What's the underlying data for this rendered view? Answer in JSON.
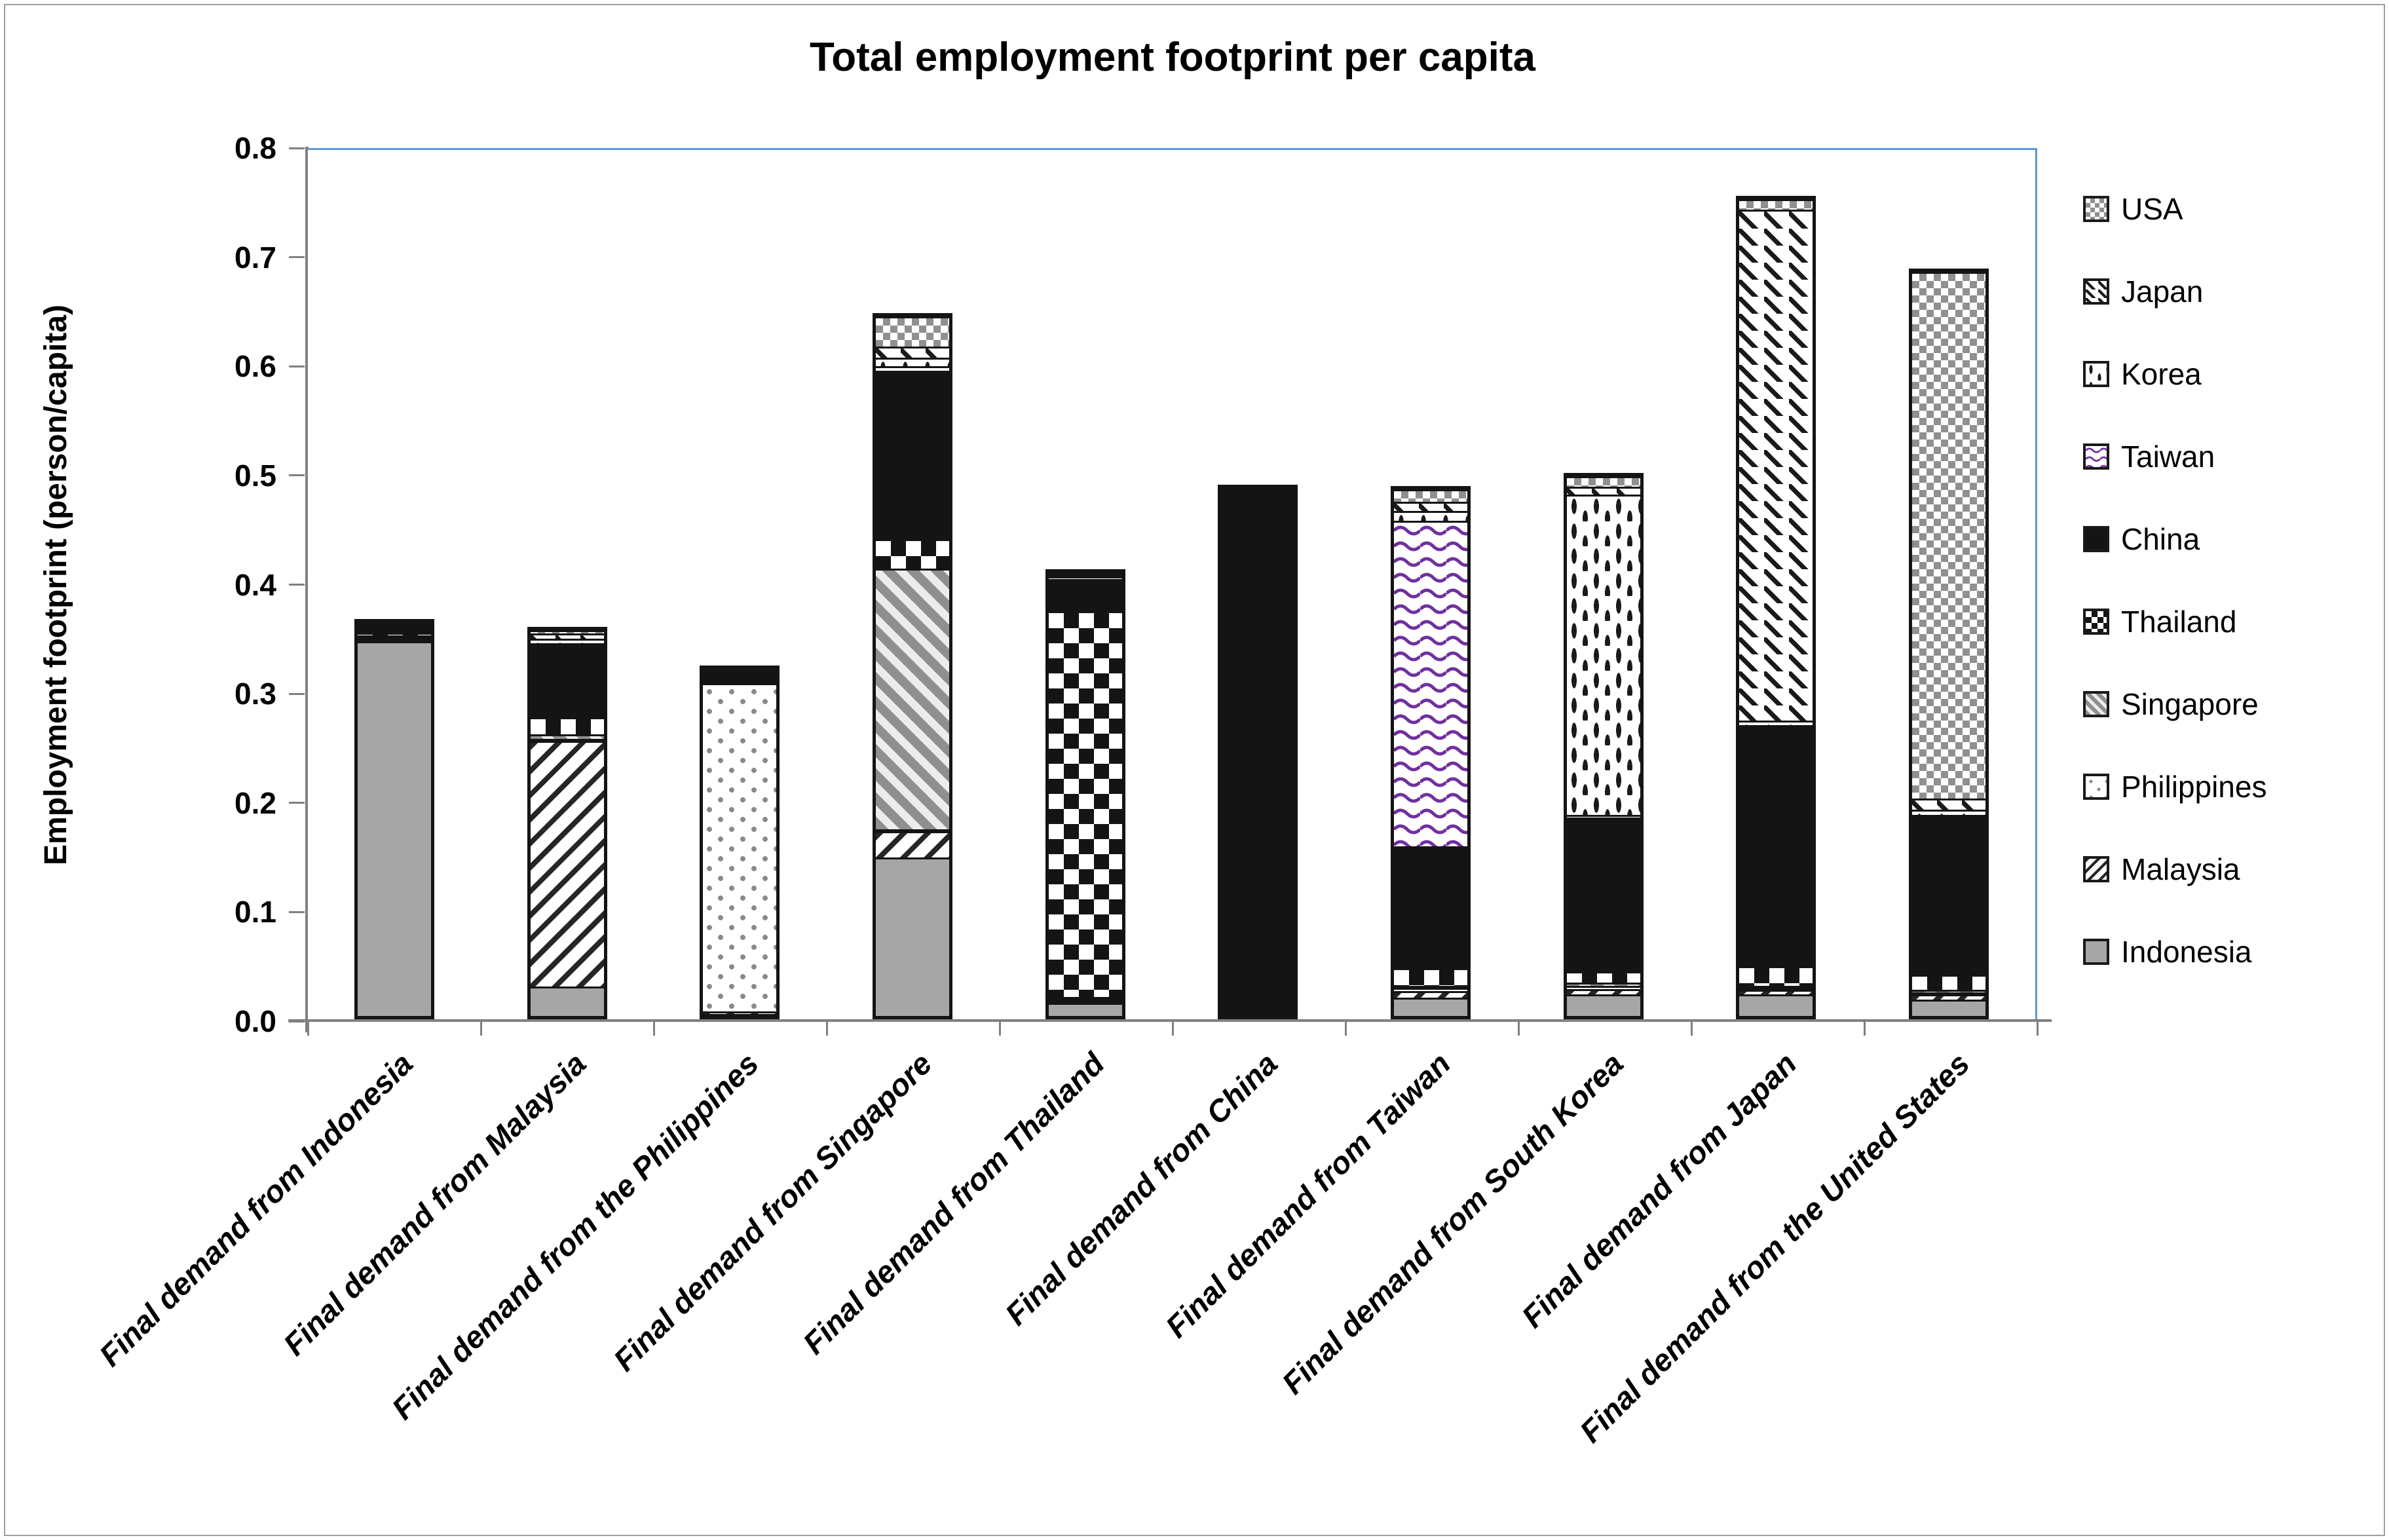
{
  "chart_data": {
    "type": "bar",
    "stacked": true,
    "title": "Total employment footprint per capita",
    "ylabel": "Employment footprint (person/capita)",
    "xlabel": "",
    "ylim": [
      0,
      0.8
    ],
    "ytick_labels": [
      "0.0",
      "0.1",
      "0.2",
      "0.3",
      "0.4",
      "0.5",
      "0.6",
      "0.7",
      "0.8"
    ],
    "grid": false,
    "legend_position": "right",
    "categories": [
      "Final demand from Indonesia",
      "Final demand from Malaysia",
      "Final demand from the Philippines",
      "Final demand from Singapore",
      "Final demand from Thailand",
      "Final demand from China",
      "Final demand from Taiwan",
      "Final demand from South Korea",
      "Final demand from Japan",
      "Final demand from the United States"
    ],
    "stack_order": "bottom to top",
    "series": [
      {
        "name": "Indonesia",
        "key": "indonesia",
        "pattern": "solid-gray",
        "values": [
          0.345,
          0.027,
          0.002,
          0.146,
          0.012,
          0.001,
          0.017,
          0.02,
          0.02,
          0.015
        ]
      },
      {
        "name": "Malaysia",
        "key": "malaysia",
        "pattern": "thin-diagonal-stripes",
        "values": [
          0.001,
          0.226,
          0.002,
          0.024,
          0.002,
          0.001,
          0.006,
          0.005,
          0.004,
          0.005
        ]
      },
      {
        "name": "Philippines",
        "key": "philippines",
        "pattern": "sparse-dots",
        "values": [
          0.001,
          0.002,
          0.302,
          0.002,
          0.001,
          0.001,
          0.003,
          0.003,
          0.002,
          0.002
        ]
      },
      {
        "name": "Singapore",
        "key": "singapore",
        "pattern": "wide-gray-diagonal-stripes",
        "values": [
          0.001,
          0.004,
          0.001,
          0.24,
          0.001,
          0.0,
          0.002,
          0.003,
          0.002,
          0.002
        ]
      },
      {
        "name": "Thailand",
        "key": "thailand",
        "pattern": "large-checkerboard",
        "values": [
          0.002,
          0.016,
          0.002,
          0.027,
          0.355,
          0.001,
          0.016,
          0.01,
          0.018,
          0.014
        ]
      },
      {
        "name": "China",
        "key": "china",
        "pattern": "solid-black",
        "values": [
          0.01,
          0.066,
          0.01,
          0.155,
          0.028,
          0.475,
          0.112,
          0.142,
          0.22,
          0.145
        ]
      },
      {
        "name": "Taiwan",
        "key": "taiwan",
        "pattern": "purple-wave",
        "values": [
          0.0,
          0.002,
          0.0,
          0.004,
          0.001,
          0.0,
          0.3,
          0.002,
          0.002,
          0.002
        ]
      },
      {
        "name": "Korea",
        "key": "korea",
        "pattern": "vertical-dash",
        "values": [
          0.0,
          0.004,
          0.0,
          0.008,
          0.002,
          0.0,
          0.009,
          0.295,
          0.004,
          0.005
        ]
      },
      {
        "name": "Japan",
        "key": "japan",
        "pattern": "diagonal-dash",
        "values": [
          0.0,
          0.005,
          0.0,
          0.01,
          0.002,
          0.001,
          0.008,
          0.007,
          0.47,
          0.01
        ]
      },
      {
        "name": "USA",
        "key": "usa",
        "pattern": "small-checkerboard",
        "values": [
          0.0,
          0.003,
          0.0,
          0.028,
          0.002,
          0.001,
          0.012,
          0.01,
          0.01,
          0.485
        ]
      }
    ],
    "bar_totals": [
      0.36,
      0.355,
      0.319,
      0.644,
      0.406,
      0.481,
      0.485,
      0.497,
      0.752,
      0.685
    ],
    "legend": [
      {
        "key": "usa",
        "label": "USA"
      },
      {
        "key": "japan",
        "label": "Japan"
      },
      {
        "key": "korea",
        "label": "Korea"
      },
      {
        "key": "taiwan",
        "label": "Taiwan"
      },
      {
        "key": "china",
        "label": "China"
      },
      {
        "key": "thailand",
        "label": "Thailand"
      },
      {
        "key": "singapore",
        "label": "Singapore"
      },
      {
        "key": "philippines",
        "label": "Philippines"
      },
      {
        "key": "malaysia",
        "label": "Malaysia"
      },
      {
        "key": "indonesia",
        "label": "Indonesia"
      }
    ],
    "colors": {
      "axis": "#808080",
      "plot_border": "#5b9bd5",
      "bar_outline": "#141414",
      "indonesia_fill": "#a6a6a6",
      "china_fill": "#141414",
      "taiwan_wave": "#7030a0",
      "singapore_stripe": "#8f8f8f",
      "pattern_ink": "#1a1a1a",
      "text": "#000000"
    }
  }
}
